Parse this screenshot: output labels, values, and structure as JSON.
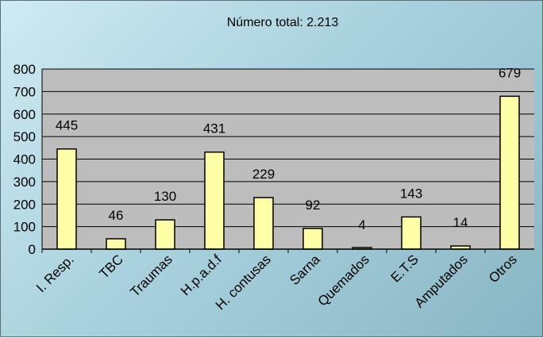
{
  "chart_data": {
    "type": "bar",
    "title": "Número total: 2.213",
    "xlabel": "",
    "ylabel": "",
    "categories": [
      "I. Resp.",
      "TBC",
      "Traumas",
      "H.p.a.d.f",
      "H. contusas",
      "Sarna",
      "Quemados",
      "E.T.S",
      "Amputados",
      "Otros"
    ],
    "values": [
      445,
      46,
      130,
      431,
      229,
      92,
      4,
      143,
      14,
      679
    ],
    "data_labels": [
      "445",
      "46",
      "130",
      "431",
      "229",
      "92",
      "4",
      "143",
      "14",
      "679"
    ],
    "ylim": [
      0,
      800
    ],
    "yticks": [
      "0",
      "100",
      "200",
      "300",
      "400",
      "500",
      "600",
      "700",
      "800"
    ],
    "grid": true,
    "legend": "none",
    "colors": {
      "bar_fill": "#ffffa8",
      "bar_stroke": "#000000",
      "plot_bg": "#bdbdbd",
      "gridline": "#000000"
    }
  }
}
